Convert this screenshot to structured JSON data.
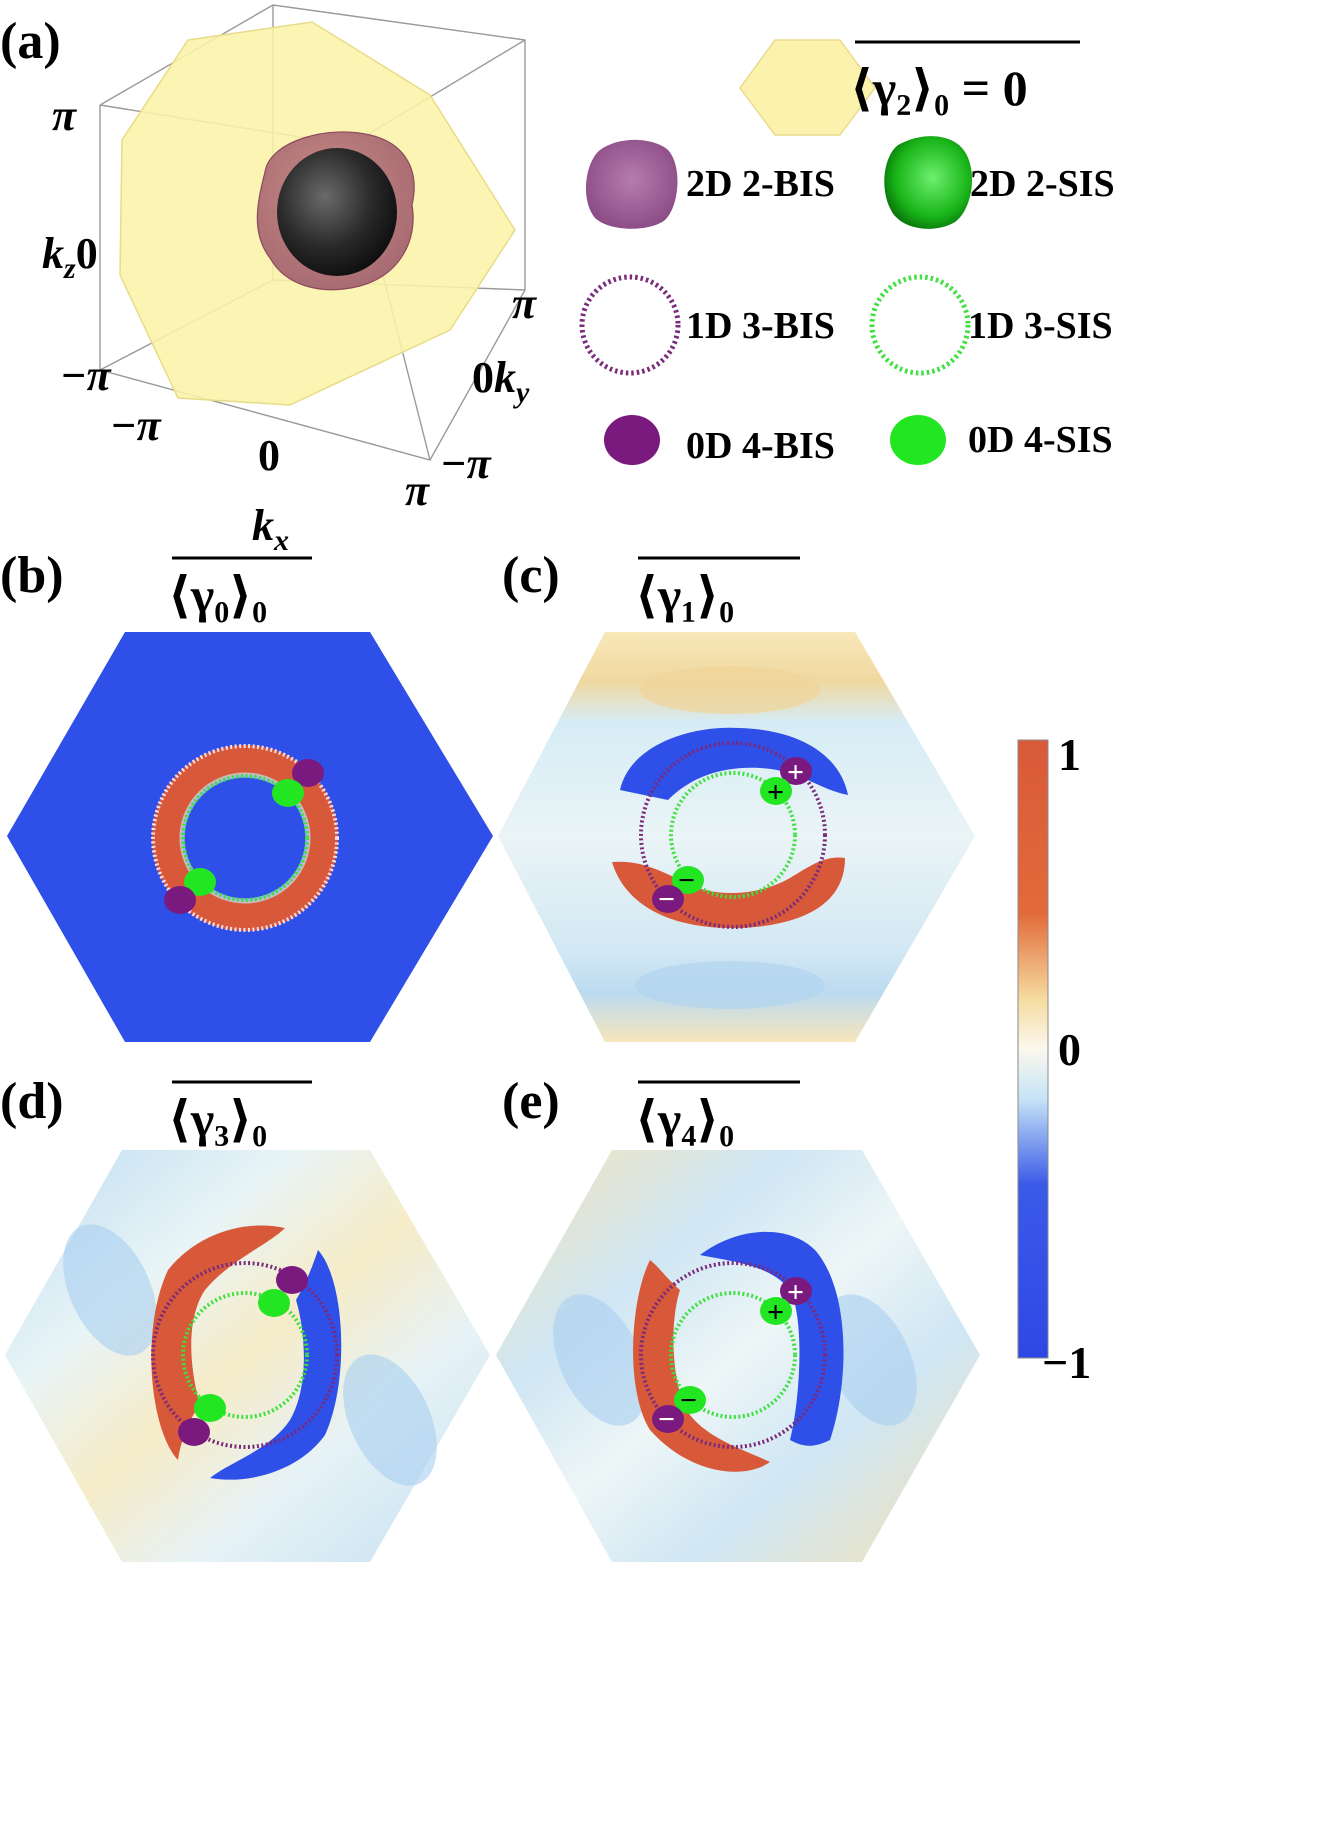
{
  "panels": {
    "a": {
      "label": "(a)",
      "axes": {
        "kx_label": "k",
        "kx_sub": "x",
        "ky_label": "k",
        "ky_sub": "y",
        "kz_label": "k",
        "kz_sub": "z",
        "kz_ticks": [
          "π",
          "0",
          "−π"
        ],
        "kx_ticks": [
          "−π",
          "0",
          "π"
        ],
        "ky_ticks": [
          "π",
          "0",
          "−π"
        ]
      }
    },
    "b": {
      "label": "(b)",
      "title": "⟨γ₀⟩₀"
    },
    "c": {
      "label": "(c)",
      "title": "⟨γ₁⟩₀"
    },
    "d": {
      "label": "(d)",
      "title": "⟨γ₃⟩₀"
    },
    "e": {
      "label": "(e)",
      "title": "⟨γ₄⟩₀"
    }
  },
  "legend": {
    "plane": "⟨γ₂⟩₀ = 0",
    "items": [
      {
        "label": "2D 2-BIS",
        "color": "#9b5a92"
      },
      {
        "label": "2D 2-SIS",
        "color": "#22c022"
      },
      {
        "label": "1D 3-BIS",
        "color": "#7a2a7a"
      },
      {
        "label": "1D 3-SIS",
        "color": "#3ee03e"
      },
      {
        "label": "0D 4-BIS",
        "color": "#7a1a7e"
      },
      {
        "label": "0D 4-SIS",
        "color": "#22e622"
      }
    ]
  },
  "colorbar": {
    "max_label": "1",
    "mid_label": "0",
    "min_label": "−1",
    "colors": [
      "#d8583a",
      "#f5f0c0",
      "#f8f8f4",
      "#c8e6f4",
      "#2e4fe8"
    ]
  },
  "markers": {
    "plus": "+",
    "minus": "−"
  }
}
